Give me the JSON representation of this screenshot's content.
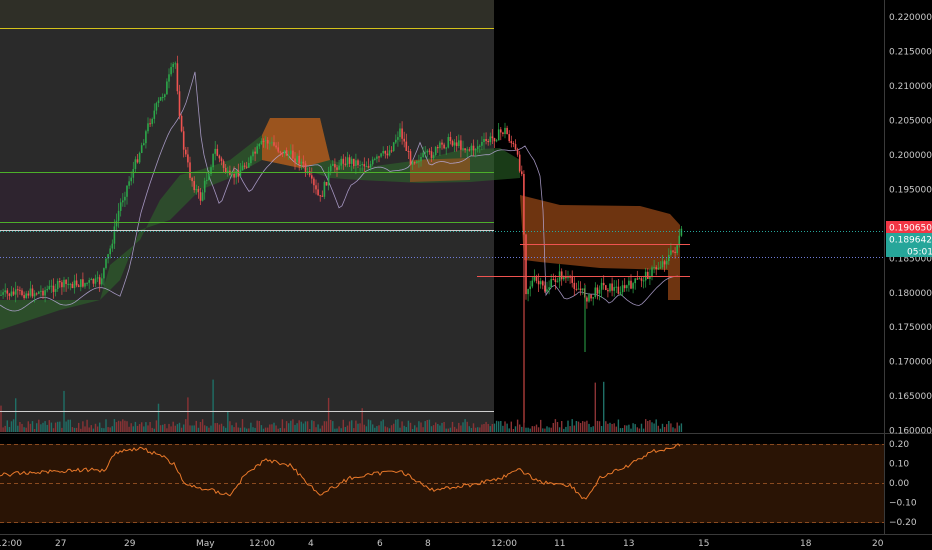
{
  "colors": {
    "background": "#000000",
    "panel_left": "#2a2a2a",
    "panel_top_band": "#2f2f27",
    "up_candle": "#26a69a",
    "up_candle_green": "#2ca84a",
    "down_candle": "#ef5350",
    "cloud_orange": "#b8561b",
    "cloud_green": "#2e6b2a",
    "lavender": "#b9a9d9",
    "yellow_line": "#d4c21a",
    "green_line": "#4caf2a",
    "oscillator": "#e8782a",
    "oscillator_band": "#2a1405",
    "price_red": "#f23645",
    "price_green": "#26a69a",
    "price_blue": "#2962ff"
  },
  "price_axis": {
    "ticks": [
      "0.22000000",
      "0.21500000",
      "0.21000000",
      "0.20500000",
      "0.20000000",
      "0.19500000",
      "0.18500000",
      "0.18000000",
      "0.17500000",
      "0.17000000",
      "0.16500000",
      "0.16000000"
    ],
    "tick_values": [
      0.22,
      0.215,
      0.21,
      0.205,
      0.2,
      0.195,
      0.185,
      0.18,
      0.175,
      0.17,
      0.165,
      0.16
    ],
    "range": [
      0.1595,
      0.2225
    ]
  },
  "price_labels": {
    "current_price": "0.19065000",
    "second_price": "0.18964250",
    "countdown": "05:01"
  },
  "oscillator_axis": {
    "ticks": [
      "0.20",
      "0.10",
      "0.00",
      "−0.10",
      "−0.20"
    ],
    "tick_values": [
      0.2,
      0.1,
      0.0,
      -0.1,
      -0.2
    ],
    "range": [
      -0.225,
      0.225
    ]
  },
  "time_axis": {
    "labels": [
      "12:00",
      "27",
      "29",
      "May",
      "12:00",
      "4",
      "6",
      "8",
      "12:00",
      "11",
      "13",
      "15",
      "18",
      "20"
    ]
  }
}
